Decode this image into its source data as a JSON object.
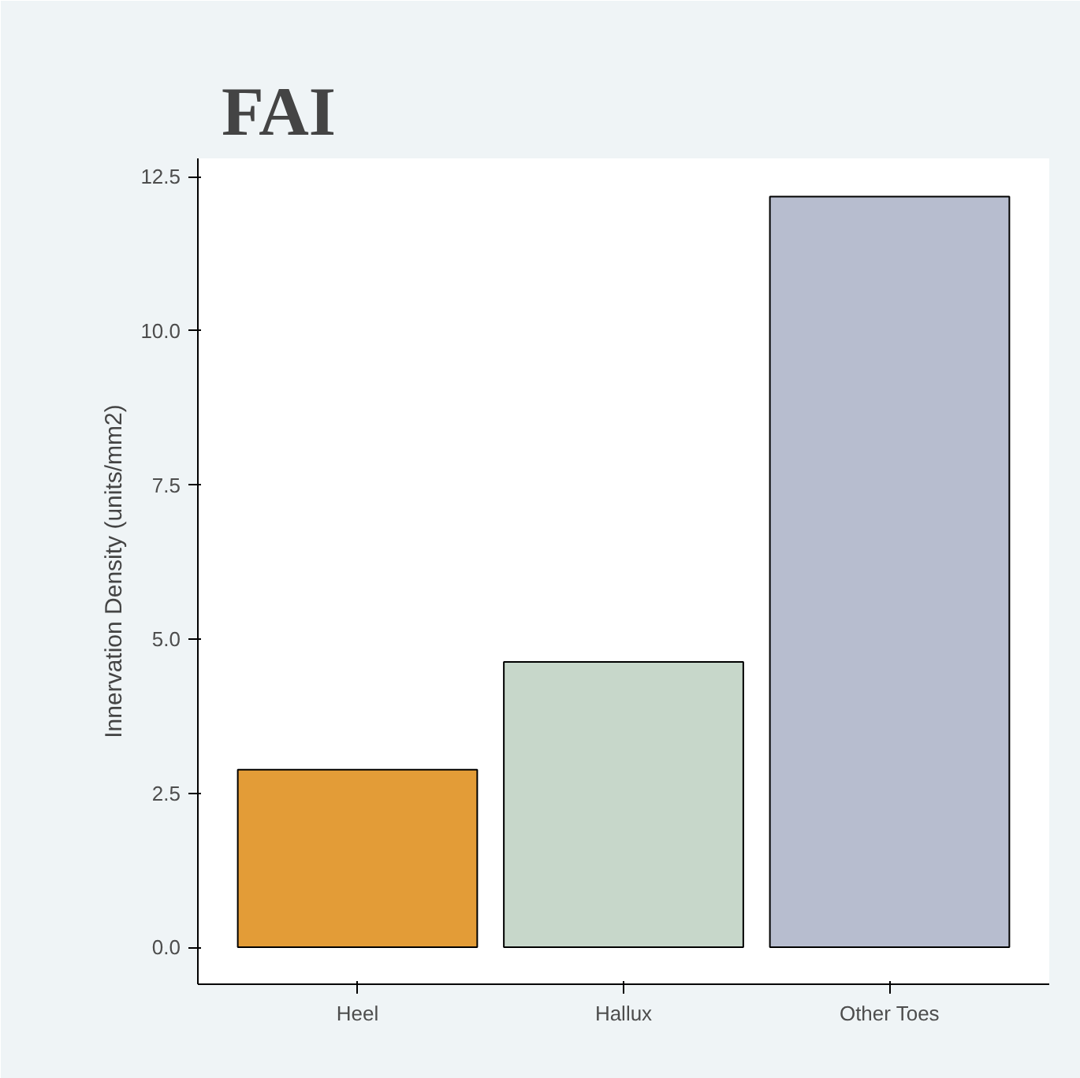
{
  "chart_data": {
    "type": "bar",
    "title": "FAI",
    "ylabel": "Innervation Density (units/mm2)",
    "categories": [
      "Heel",
      "Hallux",
      "Other Toes"
    ],
    "values": [
      2.88,
      4.63,
      12.18
    ],
    "colors": [
      "#e39c37",
      "#c7d7ca",
      "#b7bdcf"
    ],
    "ylim": [
      -0.6,
      12.8
    ],
    "yticks": [
      {
        "value": 0,
        "label": "0.0"
      },
      {
        "value": 2.5,
        "label": "2.5"
      },
      {
        "value": 5,
        "label": "5.0"
      },
      {
        "value": 7.5,
        "label": "7.5"
      },
      {
        "value": 10,
        "label": "10.0"
      },
      {
        "value": 12.5,
        "label": "12.5"
      }
    ],
    "grid": false
  }
}
